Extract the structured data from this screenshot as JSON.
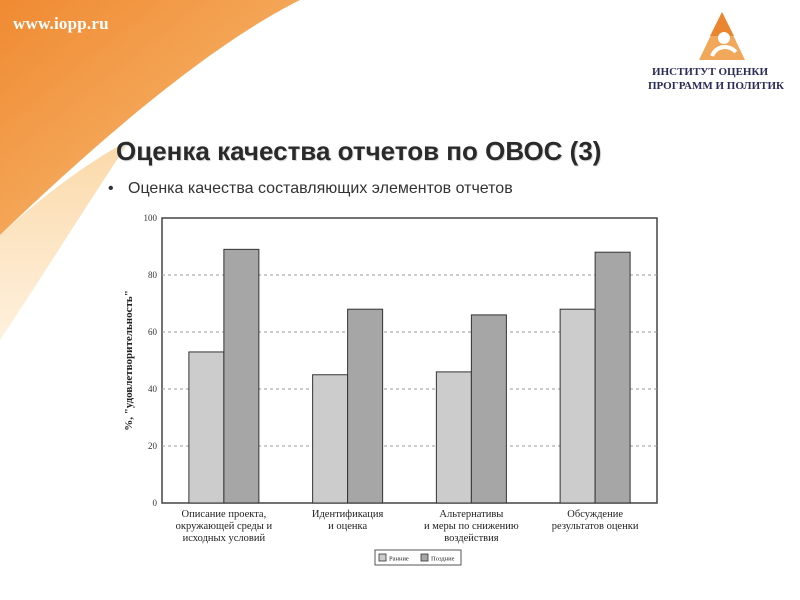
{
  "header": {
    "site_url": "www.iopp.ru",
    "logo_line1": "ИНСТИТУТ ОЦЕНКИ",
    "logo_line2": "ПРОГРАММ И ПОЛИТИК"
  },
  "slide": {
    "title": "Оценка качества отчетов по ОВОС (3)",
    "bullet": "Оценка качества составляющих элементов отчетов",
    "bullet_glyph": "•"
  },
  "colors": {
    "accent_orange": "#f2a85a",
    "series_early": "#cccccc",
    "series_late": "#a6a6a6"
  },
  "chart_data": {
    "type": "bar",
    "categories": [
      [
        "Описание проекта,",
        "окружающей среды и",
        "исходных условий"
      ],
      [
        "Идентификация",
        "и оценка"
      ],
      [
        "Альтернативы",
        "и меры по снижению",
        "воздействия"
      ],
      [
        "Обсуждение",
        "результатов оценки"
      ]
    ],
    "series": [
      {
        "name": "Ранние",
        "values": [
          53,
          45,
          46,
          68
        ]
      },
      {
        "name": "Поздние",
        "values": [
          89,
          68,
          66,
          88
        ]
      }
    ],
    "title": "",
    "xlabel": "",
    "ylabel": "%, \"удовлетворительность\"",
    "ylim": [
      0,
      100
    ],
    "yticks": [
      0,
      20,
      40,
      60,
      80,
      100
    ],
    "grid": "horizontal dashed",
    "legend_position": "bottom-center"
  }
}
